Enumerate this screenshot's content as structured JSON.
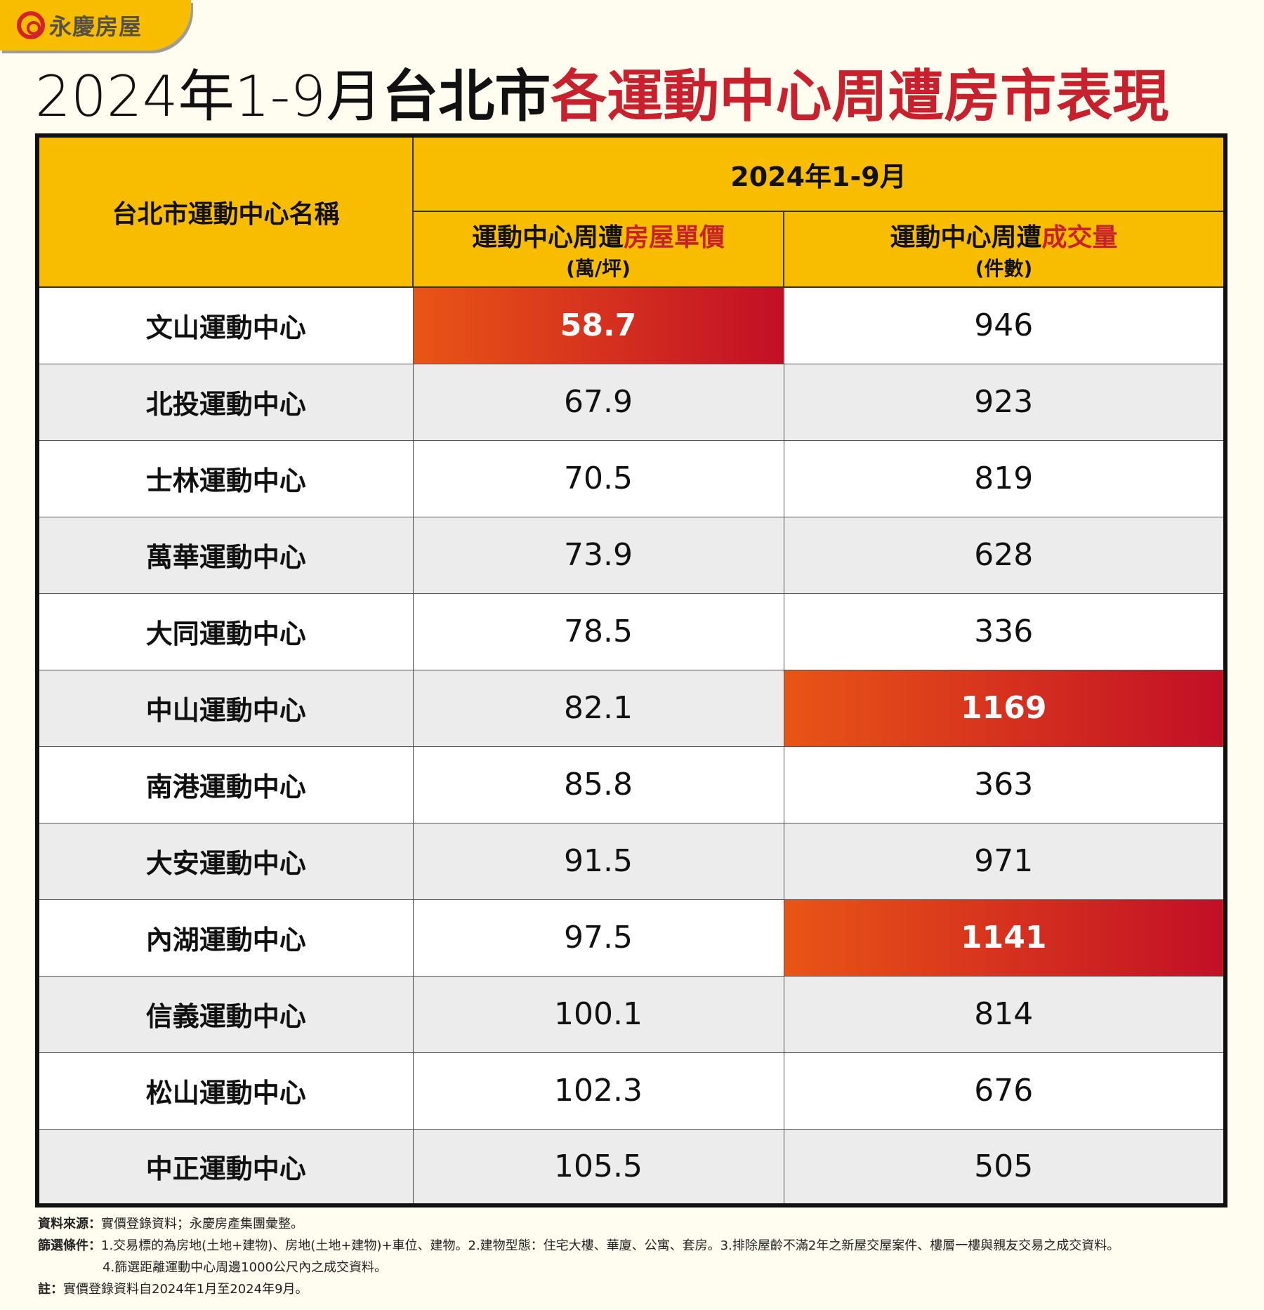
{
  "brand": {
    "name": "永慶房屋",
    "accent": "#d2232a",
    "tab_color": "#f9bd00"
  },
  "title": {
    "period": "2024年1-9月",
    "city": "台北市",
    "subject": "各運動中心周遭房市表現"
  },
  "table": {
    "col_name_header": "台北市運動中心名稱",
    "period_header": "2024年1-9月",
    "price_header": {
      "prefix": "運動中心周遭",
      "highlight": "房屋單價",
      "unit": "(萬/坪)"
    },
    "volume_header": {
      "prefix": "運動中心周遭",
      "highlight": "成交量",
      "unit": "(件數)"
    },
    "highlight_color": "#c20f26",
    "rows": [
      {
        "name": "文山運動中心",
        "price": "58.7",
        "volume": "946",
        "price_hl": true,
        "volume_hl": false
      },
      {
        "name": "北投運動中心",
        "price": "67.9",
        "volume": "923",
        "price_hl": false,
        "volume_hl": false
      },
      {
        "name": "士林運動中心",
        "price": "70.5",
        "volume": "819",
        "price_hl": false,
        "volume_hl": false
      },
      {
        "name": "萬華運動中心",
        "price": "73.9",
        "volume": "628",
        "price_hl": false,
        "volume_hl": false
      },
      {
        "name": "大同運動中心",
        "price": "78.5",
        "volume": "336",
        "price_hl": false,
        "volume_hl": false
      },
      {
        "name": "中山運動中心",
        "price": "82.1",
        "volume": "1169",
        "price_hl": false,
        "volume_hl": true
      },
      {
        "name": "南港運動中心",
        "price": "85.8",
        "volume": "363",
        "price_hl": false,
        "volume_hl": false
      },
      {
        "name": "大安運動中心",
        "price": "91.5",
        "volume": "971",
        "price_hl": false,
        "volume_hl": false
      },
      {
        "name": "內湖運動中心",
        "price": "97.5",
        "volume": "1141",
        "price_hl": false,
        "volume_hl": true
      },
      {
        "name": "信義運動中心",
        "price": "100.1",
        "volume": "814",
        "price_hl": false,
        "volume_hl": false
      },
      {
        "name": "松山運動中心",
        "price": "102.3",
        "volume": "676",
        "price_hl": false,
        "volume_hl": false
      },
      {
        "name": "中正運動中心",
        "price": "105.5",
        "volume": "505",
        "price_hl": false,
        "volume_hl": false
      }
    ]
  },
  "footer": {
    "source_label": "資料來源：",
    "source": "實價登錄資料；永慶房產集團彙整。",
    "filter_label": "篩選條件：",
    "filter_1": "1.交易標的為房地(土地+建物)、房地(土地+建物)+車位、建物。2.建物型態：住宅大樓、華廈、公寓、套房。3.排除屋齡不滿2年之新屋交屋案件、樓層一樓與親友交易之成交資料。",
    "filter_2": "4.篩選距離運動中心周邊1000公尺內之成交資料。",
    "note_label": "註：",
    "note": "實價登錄資料自2024年1月至2024年9月。"
  }
}
